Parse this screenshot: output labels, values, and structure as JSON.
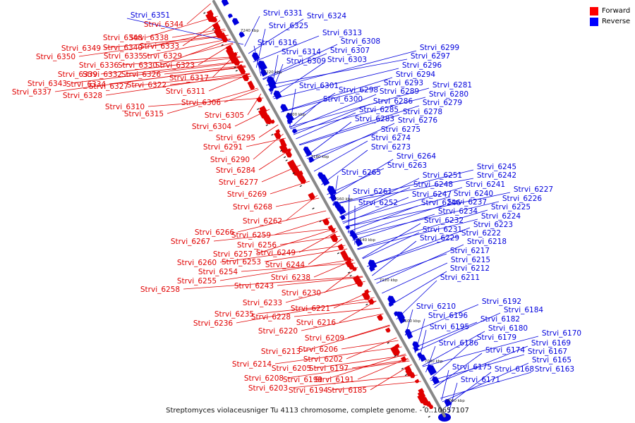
{
  "caption": "Streptomyces violaceusniger Tu 4113 chromosome, complete genome. - 0..10657107",
  "legend": {
    "items": [
      {
        "label": "Forward",
        "color": "#ff0000"
      },
      {
        "label": "Reverse",
        "color": "#0000ff"
      }
    ]
  },
  "colors": {
    "forward": "#e00000",
    "reverse": "#0000dd",
    "axis": "#888888"
  },
  "axis_ticks": [
    "7240 kbp",
    "7220 kbp",
    "7200 kbp",
    "7180 kbp",
    "7160 kbp",
    "7140 kbp",
    "7120 kbp",
    "7100 kbp",
    "7080 kbp",
    "7060 kbp"
  ],
  "forward_genes": [
    "Strvi_6344",
    "Strvi_6348",
    "Strvi_6340",
    "Strvi_6349",
    "Strvi_6338",
    "Strvi_6333",
    "Strvi_6350",
    "Strvi_6335",
    "Strvi_6329",
    "Strvi_6336",
    "Strvi_6330",
    "Strvi_6323",
    "Strvi_6339",
    "Strvi_6332",
    "Strvi_6326",
    "Strvi_6317",
    "Strvi_6343",
    "Strvi_6334",
    "Strvi_6327",
    "Strvi_6322",
    "Strvi_6337",
    "Strvi_6328",
    "Strvi_6311",
    "Strvi_6306",
    "Strvi_6310",
    "Strvi_6315",
    "Strvi_6305",
    "Strvi_6304",
    "Strvi_6295",
    "Strvi_6291",
    "Strvi_6290",
    "Strvi_6284",
    "Strvi_6277",
    "Strvi_6269",
    "Strvi_6268",
    "Strvi_6262",
    "Strvi_6266",
    "Strvi_6259",
    "Strvi_6267",
    "Strvi_6256",
    "Strvi_6257",
    "Strvi_6249",
    "Strvi_6260",
    "Strvi_6253",
    "Strvi_6254",
    "Strvi_6244",
    "Strvi_6255",
    "Strvi_6238",
    "Strvi_6258",
    "Strvi_6243",
    "Strvi_6230",
    "Strvi_6233",
    "Strvi_6221",
    "Strvi_6235",
    "Strvi_6228",
    "Strvi_6236",
    "Strvi_6216",
    "Strvi_6220",
    "Strvi_6209",
    "Strvi_6206",
    "Strvi_6213",
    "Strvi_6202",
    "Strvi_6214",
    "Strvi_6205",
    "Strvi_6197",
    "Strvi_6199",
    "Strvi_6191",
    "Strvi_6208",
    "Strvi_6203",
    "Strvi_6194",
    "Strvi_6185"
  ],
  "reverse_genes": [
    "Strvi_6351",
    "Strvi_6331",
    "Strvi_6324",
    "Strvi_6325",
    "Strvi_6313",
    "Strvi_6316",
    "Strvi_6308",
    "Strvi_6314",
    "Strvi_6307",
    "Strvi_6309",
    "Strvi_6303",
    "Strvi_6299",
    "Strvi_6297",
    "Strvi_6296",
    "Strvi_6294",
    "Strvi_6301",
    "Strvi_6293",
    "Strvi_6298",
    "Strvi_6289",
    "Strvi_6281",
    "Strvi_6300",
    "Strvi_6286",
    "Strvi_6280",
    "Strvi_6279",
    "Strvi_6285",
    "Strvi_6278",
    "Strvi_6283",
    "Strvi_6276",
    "Strvi_6275",
    "Strvi_6274",
    "Strvi_6273",
    "Strvi_6264",
    "Strvi_6263",
    "Strvi_6265",
    "Strvi_6245",
    "Strvi_6251",
    "Strvi_6242",
    "Strvi_6248",
    "Strvi_6241",
    "Strvi_6261",
    "Strvi_6247",
    "Strvi_6240",
    "Strvi_6227",
    "Strvi_6252",
    "Strvi_6246",
    "Strvi_6237",
    "Strvi_6226",
    "Strvi_6225",
    "Strvi_6234",
    "Strvi_6224",
    "Strvi_6232",
    "Strvi_6223",
    "Strvi_6231",
    "Strvi_6222",
    "Strvi_6229",
    "Strvi_6218",
    "Strvi_6217",
    "Strvi_6215",
    "Strvi_6212",
    "Strvi_6211",
    "Strvi_6210",
    "Strvi_6192",
    "Strvi_6196",
    "Strvi_6184",
    "Strvi_6182",
    "Strvi_6195",
    "Strvi_6180",
    "Strvi_6179",
    "Strvi_6186",
    "Strvi_6170",
    "Strvi_6174",
    "Strvi_6169",
    "Strvi_6167",
    "Strvi_6175",
    "Strvi_6168",
    "Strvi_6165",
    "Strvi_6163",
    "Strvi_6171"
  ]
}
